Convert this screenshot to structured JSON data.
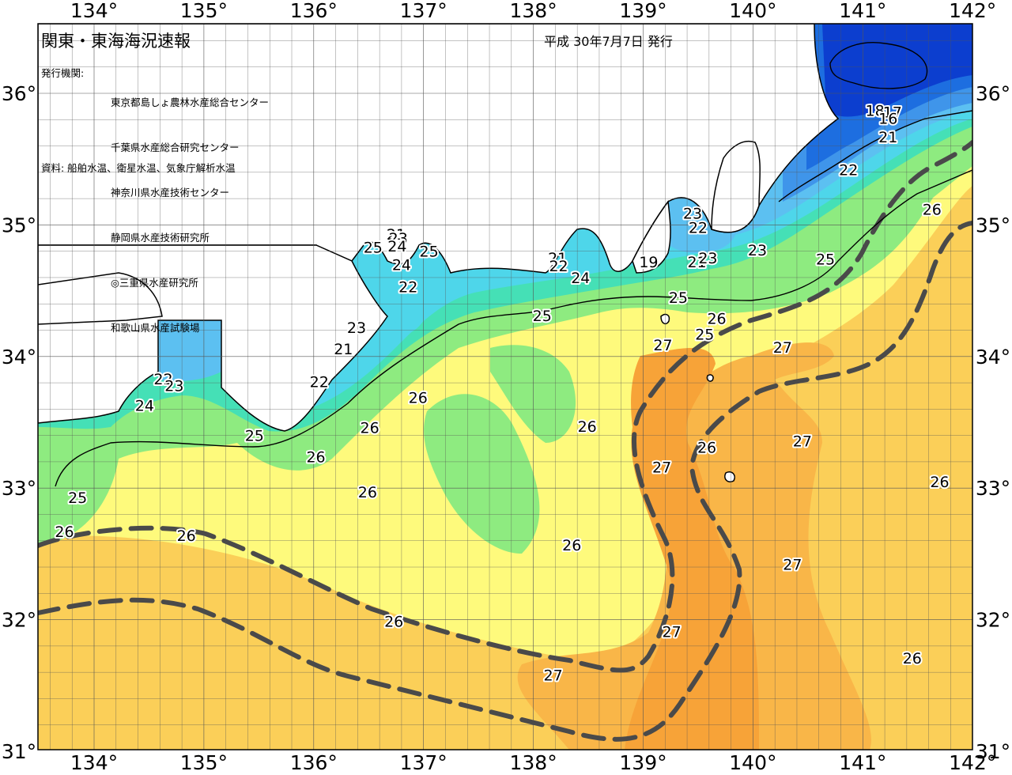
{
  "map": {
    "title": "関東・東海海況速報",
    "issued": "平成 30年7月7日 発行",
    "org_label": "発行機関:",
    "organizations": [
      "東京都島しょ農林水産総合センター",
      "千葉県水産総合研究センター",
      "神奈川県水産技術センター",
      "静岡県水産技術研究所",
      "◎三重県水産研究所",
      "和歌山県水産試験場"
    ],
    "source": "資料: 船舶水温、衛星水温、気象庁解析水温",
    "lon_ticks": [
      "134°",
      "135°",
      "136°",
      "137°",
      "138°",
      "139°",
      "140°",
      "141°",
      "142°"
    ],
    "lat_ticks": [
      "36°",
      "35°",
      "34°",
      "33°",
      "32°",
      "31°"
    ],
    "isotherm_labels": [
      {
        "text": "18",
        "lon": 141.11,
        "lat": 35.87
      },
      {
        "text": "17",
        "lon": 141.27,
        "lat": 35.86
      },
      {
        "text": "16",
        "lon": 141.23,
        "lat": 35.81
      },
      {
        "text": "21",
        "lon": 141.23,
        "lat": 35.67
      },
      {
        "text": "22",
        "lon": 140.87,
        "lat": 35.42
      },
      {
        "text": "26",
        "lon": 141.63,
        "lat": 35.12
      },
      {
        "text": "23",
        "lon": 139.45,
        "lat": 35.09
      },
      {
        "text": "22",
        "lon": 139.5,
        "lat": 34.98
      },
      {
        "text": "23",
        "lon": 140.04,
        "lat": 34.81
      },
      {
        "text": "25",
        "lon": 140.66,
        "lat": 34.74
      },
      {
        "text": "21",
        "lon": 139.49,
        "lat": 34.72
      },
      {
        "text": "23",
        "lon": 139.59,
        "lat": 34.75
      },
      {
        "text": "19",
        "lon": 139.05,
        "lat": 34.72
      },
      {
        "text": "21",
        "lon": 138.22,
        "lat": 34.75
      },
      {
        "text": "22",
        "lon": 138.23,
        "lat": 34.69
      },
      {
        "text": "24",
        "lon": 138.43,
        "lat": 34.6
      },
      {
        "text": "25",
        "lon": 139.32,
        "lat": 34.45
      },
      {
        "text": "26",
        "lon": 139.67,
        "lat": 34.29
      },
      {
        "text": "25",
        "lon": 139.56,
        "lat": 34.17
      },
      {
        "text": "27",
        "lon": 139.18,
        "lat": 34.09
      },
      {
        "text": "27",
        "lon": 140.27,
        "lat": 34.07
      },
      {
        "text": "25",
        "lon": 138.08,
        "lat": 34.31
      },
      {
        "text": "21",
        "lon": 136.75,
        "lat": 34.93
      },
      {
        "text": "23",
        "lon": 136.77,
        "lat": 34.9
      },
      {
        "text": "24",
        "lon": 136.76,
        "lat": 34.84
      },
      {
        "text": "25",
        "lon": 136.54,
        "lat": 34.83
      },
      {
        "text": "25",
        "lon": 137.05,
        "lat": 34.8
      },
      {
        "text": "24",
        "lon": 136.8,
        "lat": 34.7
      },
      {
        "text": "22",
        "lon": 136.86,
        "lat": 34.53
      },
      {
        "text": "23",
        "lon": 136.39,
        "lat": 34.22
      },
      {
        "text": "21",
        "lon": 136.27,
        "lat": 34.06
      },
      {
        "text": "22",
        "lon": 136.05,
        "lat": 33.81
      },
      {
        "text": "22",
        "lon": 134.63,
        "lat": 33.83
      },
      {
        "text": "23",
        "lon": 134.73,
        "lat": 33.78
      },
      {
        "text": "24",
        "lon": 134.46,
        "lat": 33.63
      },
      {
        "text": "26",
        "lon": 136.95,
        "lat": 33.69
      },
      {
        "text": "26",
        "lon": 136.51,
        "lat": 33.46
      },
      {
        "text": "26",
        "lon": 138.49,
        "lat": 33.47
      },
      {
        "text": "25",
        "lon": 135.46,
        "lat": 33.4
      },
      {
        "text": "26",
        "lon": 136.02,
        "lat": 33.24
      },
      {
        "text": "26",
        "lon": 139.58,
        "lat": 33.31
      },
      {
        "text": "27",
        "lon": 140.45,
        "lat": 33.36
      },
      {
        "text": "27",
        "lon": 139.17,
        "lat": 33.16
      },
      {
        "text": "26",
        "lon": 136.49,
        "lat": 32.97
      },
      {
        "text": "26",
        "lon": 141.7,
        "lat": 33.05
      },
      {
        "text": "25",
        "lon": 133.85,
        "lat": 32.93
      },
      {
        "text": "26",
        "lon": 133.73,
        "lat": 32.67
      },
      {
        "text": "26",
        "lon": 134.84,
        "lat": 32.64
      },
      {
        "text": "26",
        "lon": 138.35,
        "lat": 32.57
      },
      {
        "text": "27",
        "lon": 140.36,
        "lat": 32.42
      },
      {
        "text": "26",
        "lon": 136.73,
        "lat": 31.99
      },
      {
        "text": "27",
        "lon": 139.26,
        "lat": 31.91
      },
      {
        "text": "26",
        "lon": 141.45,
        "lat": 31.71
      },
      {
        "text": "27",
        "lon": 138.18,
        "lat": 31.58
      }
    ],
    "colors": {
      "t16_18": "#0c3ecf",
      "t19_20": "#1d6ee0",
      "t21": "#3f95ea",
      "t22": "#5cc0f1",
      "t23": "#4ed6ea",
      "t24": "#45e0b6",
      "t25": "#8eeb80",
      "t26": "#fefa7c",
      "t26_5": "#fbd35a",
      "t27": "#f9b648",
      "t28": "#f7a338",
      "land": "#ffffff",
      "kuroshio": "#4a4a4a"
    }
  }
}
